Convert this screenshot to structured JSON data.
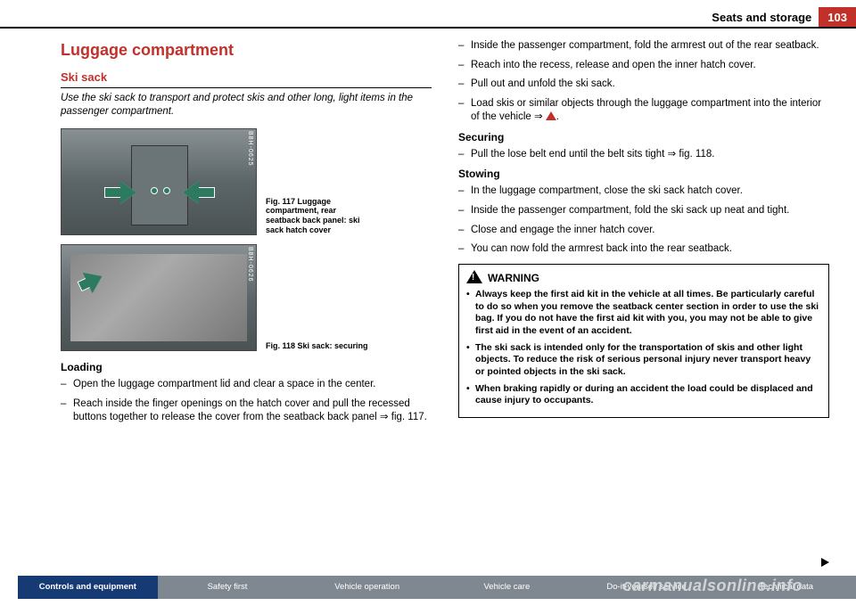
{
  "header": {
    "title": "Seats and storage",
    "page_number": "103"
  },
  "left": {
    "section_title": "Luggage compartment",
    "sub_title": "Ski sack",
    "intro": "Use the ski sack to transport and protect skis and other long, light items in the passenger compartment.",
    "fig1_code": "B8H-0625",
    "fig1_caption_bold": "Fig. 117  Luggage compartment, rear seatback back panel: ski sack hatch cover",
    "fig2_code": "B8H-0626",
    "fig2_caption_bold": "Fig. 118  Ski sack: securing",
    "loading_heading": "Loading",
    "loading_items": [
      "Open the luggage compartment lid and clear a space in the center.",
      "Reach inside the finger openings on the hatch cover and pull the recessed buttons together to release the cover from the seatback back panel ⇒ fig. 117."
    ]
  },
  "right": {
    "top_items": [
      "Inside the passenger compartment, fold the armrest out of the rear seatback.",
      "Reach into the recess, release and open the inner hatch cover.",
      "Pull out and unfold the ski sack.",
      "Load skis or similar objects through the luggage compartment into the interior of the vehicle ⇒ "
    ],
    "securing_heading": "Securing",
    "securing_item": "Pull the lose belt end until the belt sits tight ⇒ fig. 118.",
    "stowing_heading": "Stowing",
    "stowing_items": [
      "In the luggage compartment, close the ski sack hatch cover.",
      "Inside the passenger compartment, fold the ski sack up neat and tight.",
      "Close and engage the inner hatch cover.",
      "You can now fold the armrest back into the rear seatback."
    ],
    "warning_title": "WARNING",
    "warning_items": [
      "Always keep the first aid kit in the vehicle at all times. Be particularly careful to do so when you remove the seatback center section in order to use the ski bag. If you do not have the first aid kit with you, you may not be able to give first aid in the event of an accident.",
      "The ski sack is intended only for the transportation of skis and other light objects. To reduce the risk of serious personal injury never transport heavy or pointed objects in the ski sack.",
      "When braking rapidly or during an accident the load could be displaced and cause injury to occupants."
    ]
  },
  "footer": {
    "tabs": [
      "Controls and equipment",
      "Safety first",
      "Vehicle operation",
      "Vehicle care",
      "Do-it-yourself service",
      "Technical data"
    ]
  },
  "watermark": "carmanualsonline.info"
}
